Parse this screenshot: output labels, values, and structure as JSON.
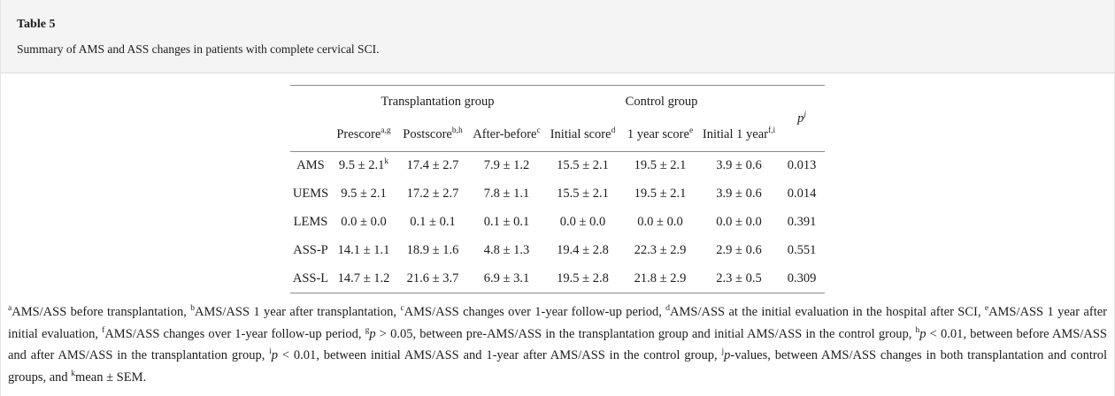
{
  "header": {
    "title": "Table 5",
    "caption": "Summary of AMS and ASS changes in patients with complete cervical SCI."
  },
  "table": {
    "group_left": "Transplantation group",
    "group_right": "Control group",
    "p_col": {
      "label": "p",
      "sup": "j"
    },
    "columns": [
      {
        "label": "Prescore",
        "sup": "a,g"
      },
      {
        "label": "Postscore",
        "sup": "b,h"
      },
      {
        "label": "After-before",
        "sup": "c"
      },
      {
        "label": "Initial score",
        "sup": "d"
      },
      {
        "label": "1 year score",
        "sup": "e"
      },
      {
        "label": "Initial 1 year",
        "sup": "f,i"
      }
    ],
    "rows": [
      {
        "label": "AMS",
        "c1": "9.5 ± 2.1",
        "c1sup": "k",
        "c2": "17.4 ± 2.7",
        "c3": "7.9 ± 1.2",
        "c4": "15.5 ± 2.1",
        "c5": "19.5 ± 2.1",
        "c6": "3.9 ± 0.6",
        "p": "0.013"
      },
      {
        "label": "UEMS",
        "c1": "9.5 ± 2.1",
        "c2": "17.2 ± 2.7",
        "c3": "7.8 ± 1.1",
        "c4": "15.5 ± 2.1",
        "c5": "19.5 ± 2.1",
        "c6": "3.9 ± 0.6",
        "p": "0.014"
      },
      {
        "label": "LEMS",
        "c1": "0.0 ± 0.0",
        "c2": "0.1 ± 0.1",
        "c3": "0.1 ± 0.1",
        "c4": "0.0 ± 0.0",
        "c5": "0.0 ± 0.0",
        "c6": "0.0 ± 0.0",
        "p": "0.391"
      },
      {
        "label": "ASS-P",
        "c1": "14.1 ± 1.1",
        "c2": "18.9 ± 1.6",
        "c3": "4.8 ± 1.3",
        "c4": "19.4 ± 2.8",
        "c5": "22.3 ± 2.9",
        "c6": "2.9 ± 0.6",
        "p": "0.551"
      },
      {
        "label": "ASS-L",
        "c1": "14.7 ± 1.2",
        "c2": "21.6 ± 3.7",
        "c3": "6.9 ± 3.1",
        "c4": "19.5 ± 2.8",
        "c5": "21.8 ± 2.9",
        "c6": "2.3 ± 0.5",
        "p": "0.309"
      }
    ]
  },
  "footnotes": {
    "segments": [
      {
        "sup": "a",
        "text": "AMS/ASS before transplantation, "
      },
      {
        "sup": "b",
        "text": "AMS/ASS 1 year after transplantation, "
      },
      {
        "sup": "c",
        "text": "AMS/ASS changes over 1-year follow-up period, "
      },
      {
        "sup": "d",
        "text": "AMS/ASS at the initial evaluation in the hospital after SCI, "
      },
      {
        "sup": "e",
        "text": "AMS/ASS 1 year after initial evaluation, "
      },
      {
        "sup": "f",
        "text": "AMS/ASS changes over 1-year follow-up period, "
      },
      {
        "sup": "g",
        "italic": "p",
        "text": " > 0.05, between pre-AMS/ASS in the transplantation group and initial AMS/ASS in the control group, "
      },
      {
        "sup": "h",
        "italic": "p",
        "text": " < 0.01, between before AMS/ASS and after AMS/ASS in the transplantation group, "
      },
      {
        "sup": "i",
        "italic": "p",
        "text": " < 0.01, between initial AMS/ASS and 1-year after AMS/ASS in the control group, "
      },
      {
        "sup": "j",
        "italic": "p",
        "text": "-values, between AMS/ASS changes in both transplantation and control groups, and "
      },
      {
        "sup": "k",
        "text": "mean ± SEM."
      }
    ]
  },
  "colors": {
    "band_bg": "#f4f4f4",
    "band_border": "#dcdcdc",
    "table_rule": "#8c8c8c",
    "text": "#1c1c1c"
  }
}
